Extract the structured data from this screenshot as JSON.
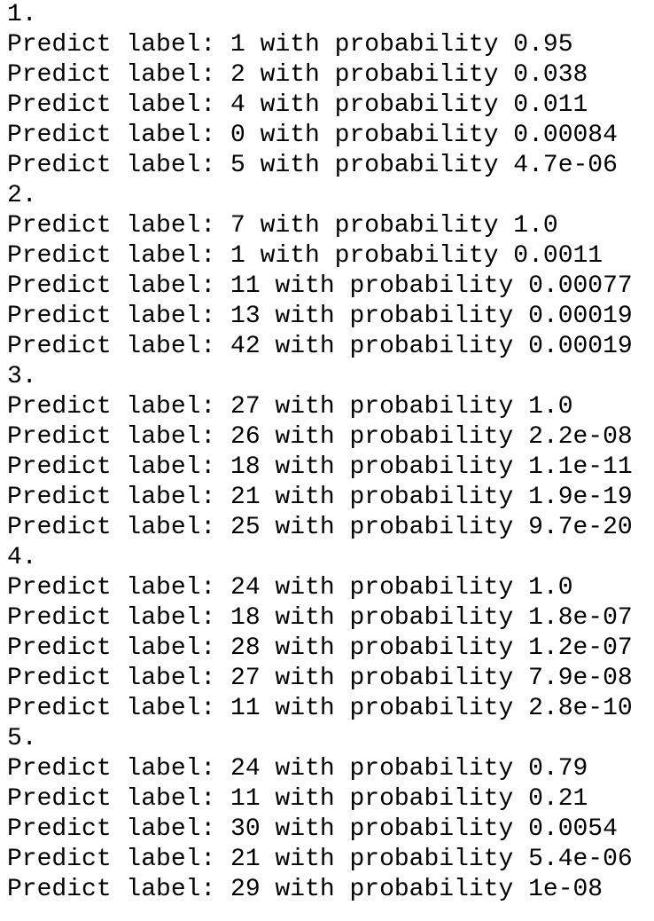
{
  "blocks": [
    {
      "heading": "1.",
      "lines": [
        "Predict label: 1 with probability 0.95",
        "Predict label: 2 with probability 0.038",
        "Predict label: 4 with probability 0.011",
        "Predict label: 0 with probability 0.00084",
        "Predict label: 5 with probability 4.7e-06"
      ]
    },
    {
      "heading": "2.",
      "lines": [
        "Predict label: 7 with probability 1.0",
        "Predict label: 1 with probability 0.0011",
        "Predict label: 11 with probability 0.00077",
        "Predict label: 13 with probability 0.00019",
        "Predict label: 42 with probability 0.00019"
      ]
    },
    {
      "heading": "3.",
      "lines": [
        "Predict label: 27 with probability 1.0",
        "Predict label: 26 with probability 2.2e-08",
        "Predict label: 18 with probability 1.1e-11",
        "Predict label: 21 with probability 1.9e-19",
        "Predict label: 25 with probability 9.7e-20"
      ]
    },
    {
      "heading": "4.",
      "lines": [
        "Predict label: 24 with probability 1.0",
        "Predict label: 18 with probability 1.8e-07",
        "Predict label: 28 with probability 1.2e-07",
        "Predict label: 27 with probability 7.9e-08",
        "Predict label: 11 with probability 2.8e-10"
      ]
    },
    {
      "heading": "5.",
      "lines": [
        "Predict label: 24 with probability 0.79",
        "Predict label: 11 with probability 0.21",
        "Predict label: 30 with probability 0.0054",
        "Predict label: 21 with probability 5.4e-06",
        "Predict label: 29 with probability 1e-08"
      ]
    }
  ]
}
